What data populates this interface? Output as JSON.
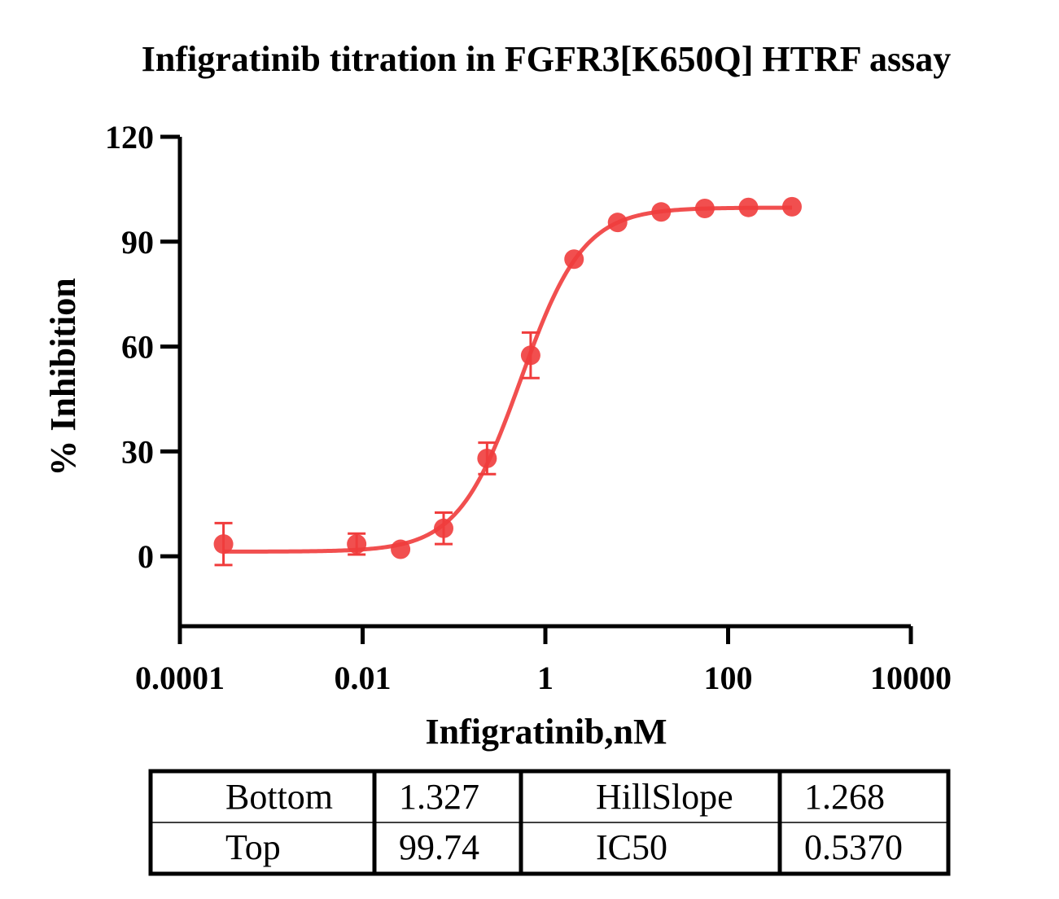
{
  "chart_data": {
    "type": "scatter",
    "title": "Infigratinib titration in FGFR3[K650Q] HTRF assay",
    "xlabel": "Infigratinib,nM",
    "ylabel": "% Inhibition",
    "x_scale": "log",
    "xlim": [
      0.0001,
      10000
    ],
    "ylim": [
      -20,
      120
    ],
    "x_ticks": [
      0.0001,
      0.01,
      1,
      100,
      10000
    ],
    "x_tick_labels": [
      "0.0001",
      "0.01",
      "1",
      "100",
      "10000"
    ],
    "y_ticks": [
      0,
      30,
      60,
      90,
      120
    ],
    "y_tick_labels": [
      "0",
      "30",
      "60",
      "90",
      "120"
    ],
    "grid": false,
    "color": "#f03c3c",
    "series": [
      {
        "x": [
          0.0003,
          0.0086,
          0.026,
          0.077,
          0.23,
          0.69,
          2.06,
          6.17,
          18.5,
          55.6,
          167,
          500
        ],
        "y": [
          3.5,
          3.5,
          2.0,
          8.0,
          28.0,
          57.5,
          85.0,
          95.5,
          98.5,
          99.5,
          99.8,
          100.0
        ],
        "err": [
          6.0,
          3.0,
          0,
          4.5,
          4.5,
          6.5,
          0,
          0,
          0,
          0,
          0,
          0
        ]
      }
    ],
    "fit": {
      "model": "four-parameter logistic",
      "bottom": 1.327,
      "top": 99.74,
      "ic50": 0.537,
      "hillslope": 1.268
    }
  },
  "table": {
    "rows": [
      [
        "Bottom",
        "1.327",
        "HillSlope",
        "1.268"
      ],
      [
        "Top",
        "99.74",
        "IC50",
        "0.5370"
      ]
    ]
  }
}
